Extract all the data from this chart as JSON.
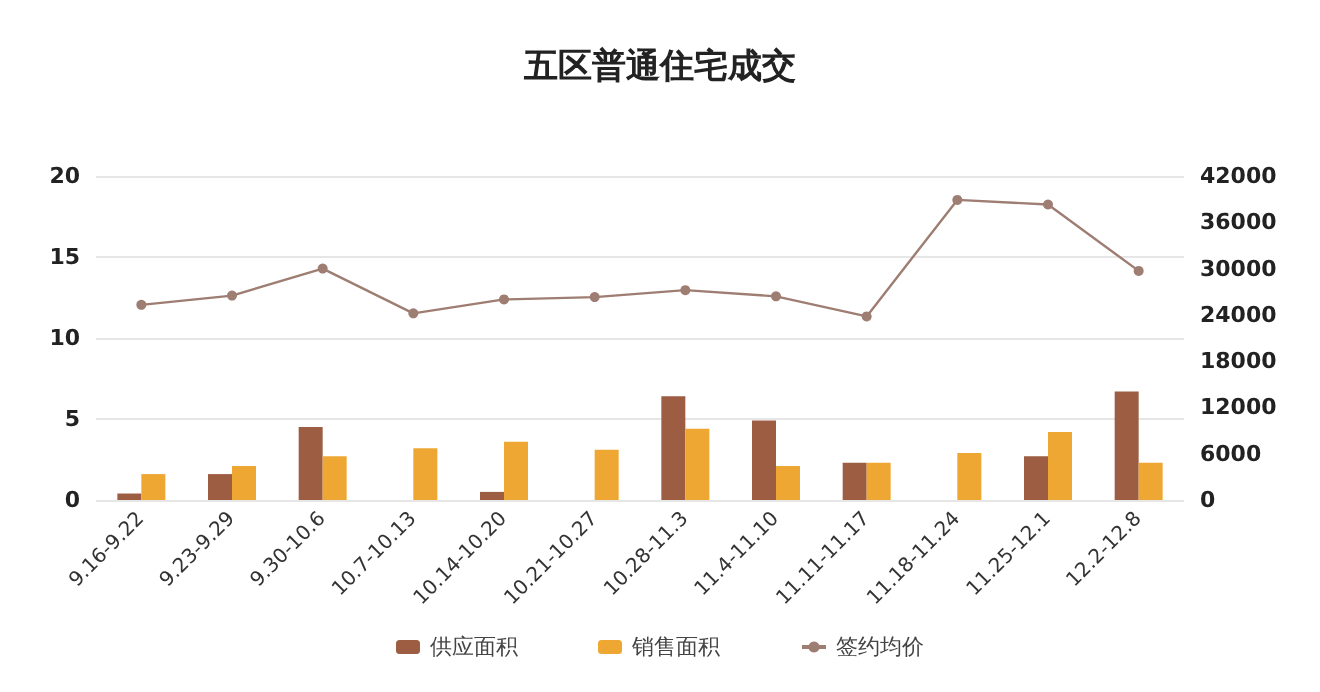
{
  "chart_data": {
    "type": "bar",
    "title": "五区普通住宅成交",
    "categories": [
      "9.16-9.22",
      "9.23-9.29",
      "9.30-10.6",
      "10.7-10.13",
      "10.14-10.20",
      "10.21-10.27",
      "10.28-11.3",
      "11.4-11.10",
      "11.11-11.17",
      "11.18-11.24",
      "11.25-12.1",
      "12.2-12.8"
    ],
    "series": [
      {
        "name": "供应面积",
        "color": "#9c5d43",
        "values": [
          0.4,
          1.6,
          4.5,
          0,
          0.5,
          0,
          6.4,
          4.9,
          2.3,
          0,
          2.7,
          6.7
        ]
      },
      {
        "name": "销售面积",
        "color": "#eea733",
        "values": [
          1.6,
          2.1,
          2.7,
          3.2,
          3.6,
          3.1,
          4.4,
          2.1,
          2.3,
          2.9,
          4.2,
          2.3
        ]
      },
      {
        "name": "签约均价",
        "type": "line",
        "axis": "y2",
        "color": "#9e7d72",
        "marker": "circle",
        "values": [
          25300,
          26500,
          30000,
          24200,
          26000,
          26300,
          27200,
          26400,
          23800,
          38900,
          38300,
          29700
        ]
      }
    ],
    "ylim": [
      0,
      20
    ],
    "yticks": [
      0,
      5,
      10,
      15,
      20
    ],
    "y2lim": [
      0,
      42000
    ],
    "y2ticks": [
      0,
      6000,
      12000,
      18000,
      24000,
      30000,
      36000,
      42000
    ],
    "grid": "y",
    "legend": "bottom"
  }
}
